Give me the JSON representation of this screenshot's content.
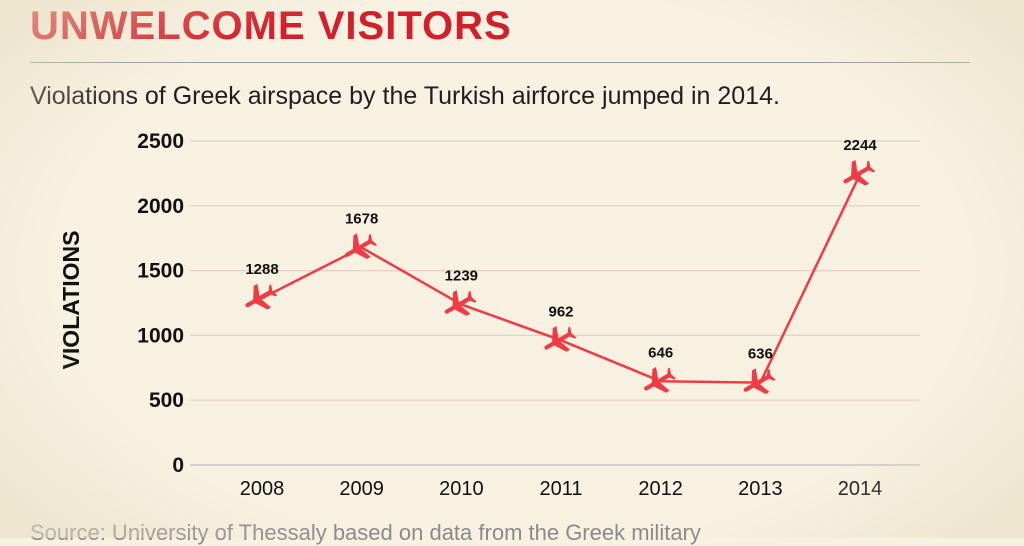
{
  "header": {
    "title": "UNWELCOME VISITORS",
    "subtitle": "Violations of Greek airspace by the Turkish airforce jumped in 2014."
  },
  "footer": {
    "source": "Source: University of Thessaly based on data from the Greek military"
  },
  "colors": {
    "accent": "#d21f2b",
    "line": "#ee3b45",
    "grid": "#e6cfc4",
    "background": "#f7f1e2"
  },
  "marker_icon": "airplane-icon",
  "chart_data": {
    "type": "line",
    "title": "UNWELCOME VISITORS",
    "subtitle": "Violations of Greek airspace by the Turkish airforce jumped in 2014.",
    "xlabel": "",
    "ylabel": "VIOLATIONS",
    "categories": [
      "2008",
      "2009",
      "2010",
      "2011",
      "2012",
      "2013",
      "2014"
    ],
    "series": [
      {
        "values": [
          1288,
          1678,
          1239,
          962,
          646,
          636,
          2244
        ]
      }
    ],
    "ylim": [
      0,
      2500
    ],
    "yticks": [
      0,
      500,
      1000,
      1500,
      2000,
      2500
    ],
    "grid": true,
    "legend": "none"
  }
}
